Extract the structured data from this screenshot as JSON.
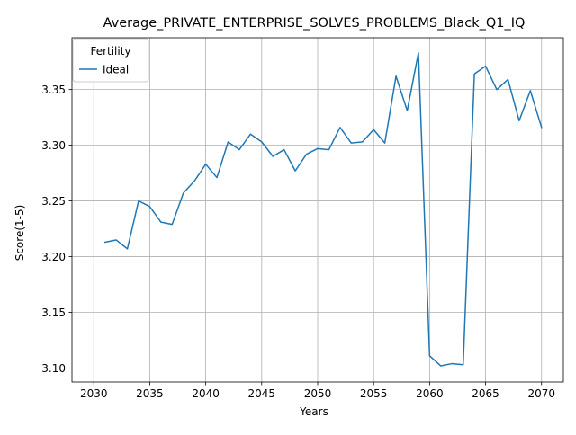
{
  "chart_data": {
    "type": "line",
    "title": "Average_PRIVATE_ENTERPRISE_SOLVES_PROBLEMS_Black_Q1_IQ",
    "xlabel": "Years",
    "ylabel": "Score(1-5)",
    "xlim": [
      2028.05,
      2071.95
    ],
    "ylim": [
      3.0875,
      3.3965
    ],
    "x_ticks": [
      2030,
      2035,
      2040,
      2045,
      2050,
      2055,
      2060,
      2065,
      2070
    ],
    "y_ticks": [
      3.1,
      3.15,
      3.2,
      3.25,
      3.3,
      3.35
    ],
    "y_tick_labels": [
      "3.10",
      "3.15",
      "3.20",
      "3.25",
      "3.30",
      "3.35"
    ],
    "grid": true,
    "legend": {
      "title": "Fertility",
      "placement": "top-left"
    },
    "series": [
      {
        "name": "Ideal",
        "color": "#1f77b4",
        "x": [
          2031,
          2032,
          2033,
          2034,
          2035,
          2036,
          2037,
          2038,
          2039,
          2040,
          2041,
          2042,
          2043,
          2044,
          2045,
          2046,
          2047,
          2048,
          2049,
          2050,
          2051,
          2052,
          2053,
          2054,
          2055,
          2056,
          2057,
          2058,
          2059,
          2060,
          2061,
          2062,
          2063,
          2064,
          2065,
          2066,
          2067,
          2068,
          2069,
          2070
        ],
        "values": [
          3.213,
          3.215,
          3.207,
          3.25,
          3.245,
          3.231,
          3.229,
          3.257,
          3.268,
          3.283,
          3.271,
          3.303,
          3.296,
          3.31,
          3.303,
          3.29,
          3.296,
          3.277,
          3.292,
          3.297,
          3.296,
          3.316,
          3.302,
          3.303,
          3.314,
          3.302,
          3.362,
          3.331,
          3.383,
          3.111,
          3.102,
          3.104,
          3.103,
          3.364,
          3.371,
          3.35,
          3.359,
          3.322,
          3.349,
          3.316
        ]
      }
    ]
  }
}
